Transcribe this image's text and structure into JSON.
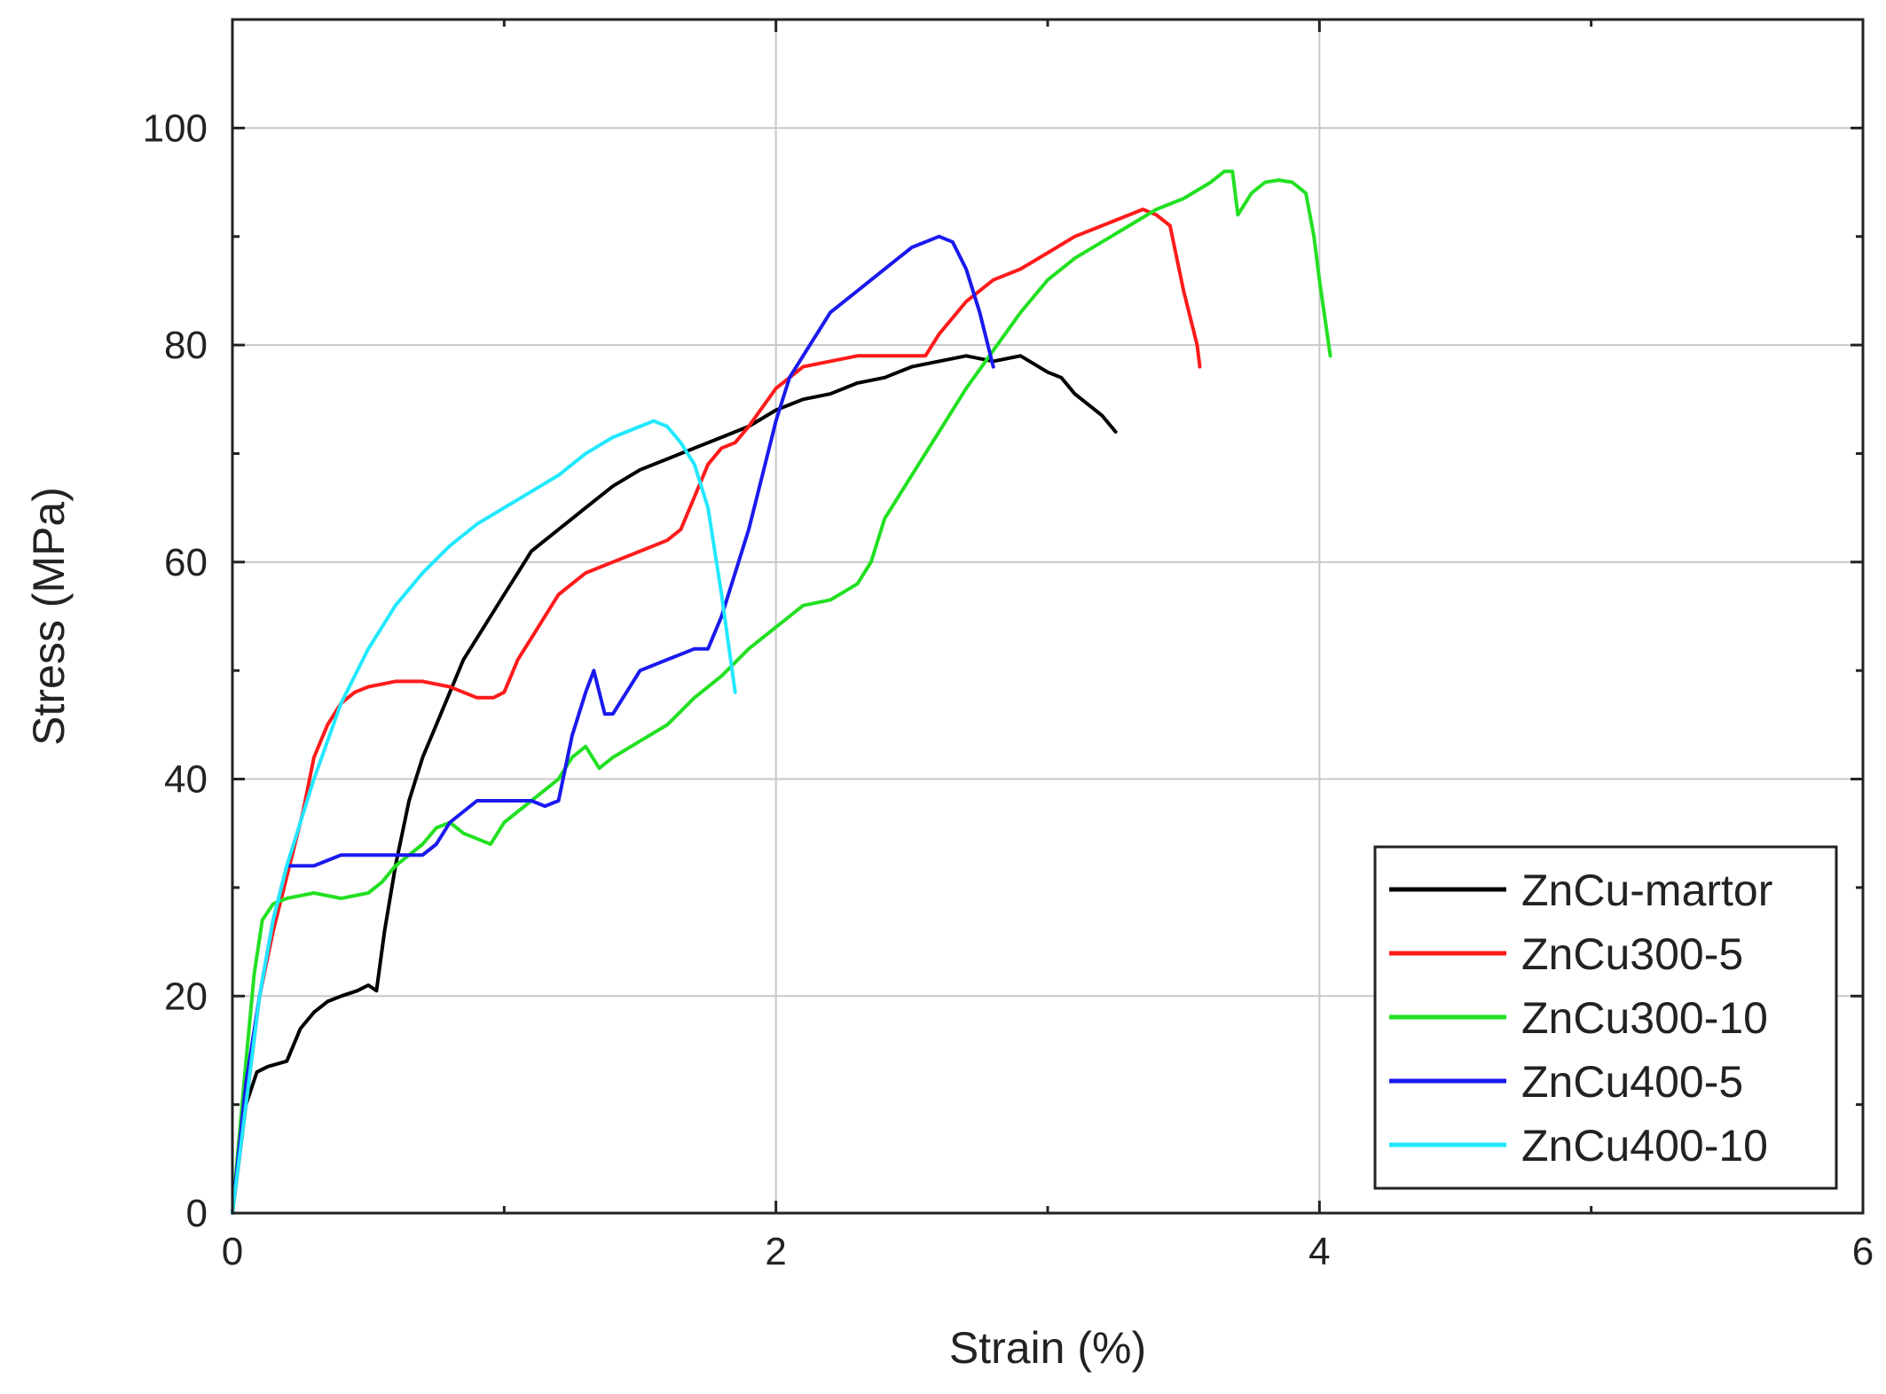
{
  "chart_data": {
    "type": "line",
    "title": "",
    "xlabel": "Strain (%)",
    "ylabel": "Stress (MPa)",
    "xlim": [
      0,
      6
    ],
    "ylim": [
      0,
      110
    ],
    "xticks": [
      0,
      2,
      4,
      6
    ],
    "yticks": [
      0,
      20,
      40,
      60,
      80,
      100
    ],
    "grid": true,
    "legend_position": "bottom-right",
    "series": [
      {
        "name": "ZnCu-martor",
        "color": "#000000",
        "points": [
          [
            0,
            0
          ],
          [
            0.05,
            10
          ],
          [
            0.09,
            13
          ],
          [
            0.13,
            13.5
          ],
          [
            0.2,
            14
          ],
          [
            0.25,
            17
          ],
          [
            0.3,
            18.5
          ],
          [
            0.35,
            19.5
          ],
          [
            0.4,
            20
          ],
          [
            0.46,
            20.5
          ],
          [
            0.5,
            21
          ],
          [
            0.53,
            20.5
          ],
          [
            0.56,
            26
          ],
          [
            0.6,
            32
          ],
          [
            0.65,
            38
          ],
          [
            0.7,
            42
          ],
          [
            0.75,
            45
          ],
          [
            0.8,
            48
          ],
          [
            0.85,
            51
          ],
          [
            0.9,
            53
          ],
          [
            0.95,
            55
          ],
          [
            1.0,
            57
          ],
          [
            1.05,
            59
          ],
          [
            1.1,
            61
          ],
          [
            1.2,
            63
          ],
          [
            1.3,
            65
          ],
          [
            1.4,
            67
          ],
          [
            1.5,
            68.5
          ],
          [
            1.6,
            69.5
          ],
          [
            1.7,
            70.5
          ],
          [
            1.8,
            71.5
          ],
          [
            1.9,
            72.5
          ],
          [
            2.0,
            74
          ],
          [
            2.1,
            75
          ],
          [
            2.2,
            75.5
          ],
          [
            2.3,
            76.5
          ],
          [
            2.4,
            77
          ],
          [
            2.5,
            78
          ],
          [
            2.6,
            78.5
          ],
          [
            2.7,
            79
          ],
          [
            2.8,
            78.5
          ],
          [
            2.9,
            79
          ],
          [
            3.0,
            77.5
          ],
          [
            3.05,
            77
          ],
          [
            3.1,
            75.5
          ],
          [
            3.15,
            74.5
          ],
          [
            3.2,
            73.5
          ],
          [
            3.25,
            72
          ]
        ]
      },
      {
        "name": "ZnCu300-5",
        "color": "#ff1a1a",
        "points": [
          [
            0,
            0
          ],
          [
            0.05,
            10
          ],
          [
            0.1,
            20
          ],
          [
            0.15,
            26
          ],
          [
            0.22,
            33
          ],
          [
            0.26,
            37
          ],
          [
            0.3,
            42
          ],
          [
            0.35,
            45
          ],
          [
            0.4,
            47
          ],
          [
            0.45,
            48
          ],
          [
            0.5,
            48.5
          ],
          [
            0.6,
            49
          ],
          [
            0.7,
            49
          ],
          [
            0.8,
            48.5
          ],
          [
            0.9,
            47.5
          ],
          [
            0.96,
            47.5
          ],
          [
            1.0,
            48
          ],
          [
            1.05,
            51
          ],
          [
            1.1,
            53
          ],
          [
            1.15,
            55
          ],
          [
            1.2,
            57
          ],
          [
            1.3,
            59
          ],
          [
            1.4,
            60
          ],
          [
            1.5,
            61
          ],
          [
            1.6,
            62
          ],
          [
            1.65,
            63
          ],
          [
            1.7,
            66
          ],
          [
            1.75,
            69
          ],
          [
            1.8,
            70.5
          ],
          [
            1.85,
            71
          ],
          [
            1.9,
            72.5
          ],
          [
            2.0,
            76
          ],
          [
            2.1,
            78
          ],
          [
            2.2,
            78.5
          ],
          [
            2.3,
            79
          ],
          [
            2.4,
            79
          ],
          [
            2.5,
            79
          ],
          [
            2.55,
            79
          ],
          [
            2.6,
            81
          ],
          [
            2.7,
            84
          ],
          [
            2.8,
            86
          ],
          [
            2.9,
            87
          ],
          [
            3.0,
            88.5
          ],
          [
            3.1,
            90
          ],
          [
            3.2,
            91
          ],
          [
            3.3,
            92
          ],
          [
            3.35,
            92.5
          ],
          [
            3.4,
            92
          ],
          [
            3.45,
            91
          ],
          [
            3.5,
            85
          ],
          [
            3.55,
            80
          ],
          [
            3.56,
            78
          ]
        ]
      },
      {
        "name": "ZnCu300-10",
        "color": "#22e022",
        "points": [
          [
            0,
            0
          ],
          [
            0.05,
            14
          ],
          [
            0.08,
            22
          ],
          [
            0.11,
            27
          ],
          [
            0.15,
            28.5
          ],
          [
            0.2,
            29
          ],
          [
            0.3,
            29.5
          ],
          [
            0.4,
            29
          ],
          [
            0.5,
            29.5
          ],
          [
            0.55,
            30.5
          ],
          [
            0.6,
            32
          ],
          [
            0.65,
            33
          ],
          [
            0.7,
            34
          ],
          [
            0.75,
            35.5
          ],
          [
            0.8,
            36
          ],
          [
            0.85,
            35
          ],
          [
            0.9,
            34.5
          ],
          [
            0.95,
            34
          ],
          [
            1.0,
            36
          ],
          [
            1.1,
            38
          ],
          [
            1.2,
            40
          ],
          [
            1.25,
            42
          ],
          [
            1.3,
            43
          ],
          [
            1.35,
            41
          ],
          [
            1.4,
            42
          ],
          [
            1.5,
            43.5
          ],
          [
            1.6,
            45
          ],
          [
            1.7,
            47.5
          ],
          [
            1.8,
            49.5
          ],
          [
            1.9,
            52
          ],
          [
            2.0,
            54
          ],
          [
            2.1,
            56
          ],
          [
            2.2,
            56.5
          ],
          [
            2.3,
            58
          ],
          [
            2.35,
            60
          ],
          [
            2.4,
            64
          ],
          [
            2.5,
            68
          ],
          [
            2.6,
            72
          ],
          [
            2.7,
            76
          ],
          [
            2.8,
            79.5
          ],
          [
            2.9,
            83
          ],
          [
            3.0,
            86
          ],
          [
            3.1,
            88
          ],
          [
            3.2,
            89.5
          ],
          [
            3.3,
            91
          ],
          [
            3.4,
            92.5
          ],
          [
            3.5,
            93.5
          ],
          [
            3.6,
            95
          ],
          [
            3.65,
            96
          ],
          [
            3.68,
            96
          ],
          [
            3.7,
            92
          ],
          [
            3.75,
            94
          ],
          [
            3.8,
            95
          ],
          [
            3.85,
            95.2
          ],
          [
            3.9,
            95
          ],
          [
            3.95,
            94
          ],
          [
            3.98,
            90
          ],
          [
            4.0,
            86
          ],
          [
            4.02,
            82.5
          ],
          [
            4.04,
            79
          ]
        ]
      },
      {
        "name": "ZnCu400-5",
        "color": "#1a1aee",
        "points": [
          [
            0,
            0
          ],
          [
            0.05,
            12
          ],
          [
            0.1,
            20
          ],
          [
            0.15,
            27
          ],
          [
            0.2,
            32
          ],
          [
            0.25,
            32
          ],
          [
            0.3,
            32
          ],
          [
            0.4,
            33
          ],
          [
            0.5,
            33
          ],
          [
            0.6,
            33
          ],
          [
            0.7,
            33
          ],
          [
            0.75,
            34
          ],
          [
            0.8,
            36
          ],
          [
            0.9,
            38
          ],
          [
            1.0,
            38
          ],
          [
            1.1,
            38
          ],
          [
            1.15,
            37.5
          ],
          [
            1.2,
            38
          ],
          [
            1.25,
            44
          ],
          [
            1.3,
            48
          ],
          [
            1.33,
            50
          ],
          [
            1.37,
            46
          ],
          [
            1.4,
            46
          ],
          [
            1.45,
            48
          ],
          [
            1.5,
            50
          ],
          [
            1.6,
            51
          ],
          [
            1.7,
            52
          ],
          [
            1.75,
            52
          ],
          [
            1.8,
            55
          ],
          [
            1.85,
            59
          ],
          [
            1.9,
            63
          ],
          [
            1.95,
            68
          ],
          [
            2.0,
            73
          ],
          [
            2.05,
            77
          ],
          [
            2.1,
            79
          ],
          [
            2.15,
            81
          ],
          [
            2.2,
            83
          ],
          [
            2.3,
            85
          ],
          [
            2.4,
            87
          ],
          [
            2.5,
            89
          ],
          [
            2.6,
            90
          ],
          [
            2.65,
            89.5
          ],
          [
            2.7,
            87
          ],
          [
            2.75,
            83
          ],
          [
            2.8,
            78
          ]
        ]
      },
      {
        "name": "ZnCu400-10",
        "color": "#22e8ff",
        "points": [
          [
            0,
            0
          ],
          [
            0.05,
            10
          ],
          [
            0.1,
            20
          ],
          [
            0.15,
            27
          ],
          [
            0.2,
            32
          ],
          [
            0.3,
            40
          ],
          [
            0.4,
            47
          ],
          [
            0.5,
            52
          ],
          [
            0.6,
            56
          ],
          [
            0.7,
            59
          ],
          [
            0.8,
            61.5
          ],
          [
            0.9,
            63.5
          ],
          [
            1.0,
            65
          ],
          [
            1.1,
            66.5
          ],
          [
            1.2,
            68
          ],
          [
            1.3,
            70
          ],
          [
            1.4,
            71.5
          ],
          [
            1.5,
            72.5
          ],
          [
            1.55,
            73
          ],
          [
            1.6,
            72.5
          ],
          [
            1.65,
            71
          ],
          [
            1.7,
            69
          ],
          [
            1.75,
            65
          ],
          [
            1.8,
            57
          ],
          [
            1.85,
            48
          ]
        ]
      }
    ]
  }
}
